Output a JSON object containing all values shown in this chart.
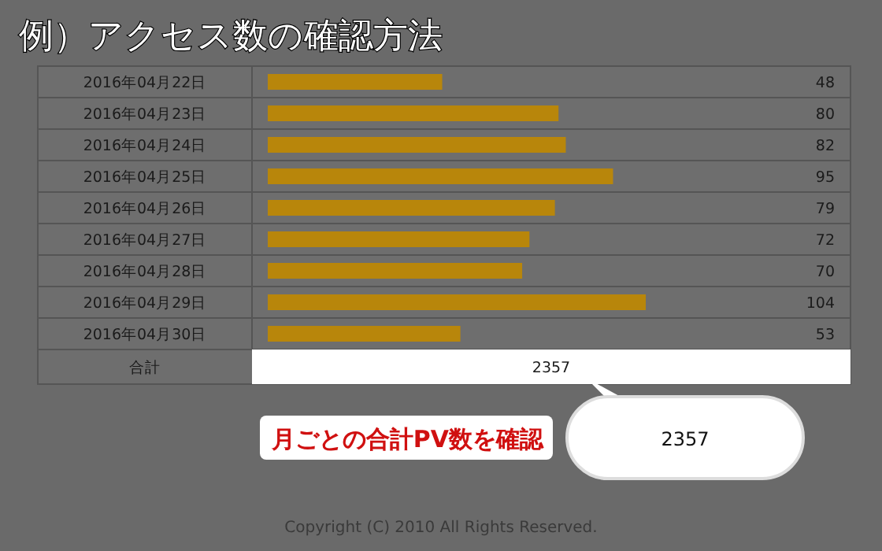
{
  "chart_data": {
    "type": "bar",
    "orientation": "horizontal",
    "title": "例）アクセス数の確認方法",
    "categories": [
      "2016年04月22日",
      "2016年04月23日",
      "2016年04月24日",
      "2016年04月25日",
      "2016年04月26日",
      "2016年04月27日",
      "2016年04月28日",
      "2016年04月29日",
      "2016年04月30日"
    ],
    "values": [
      48,
      80,
      82,
      95,
      79,
      72,
      70,
      104,
      53
    ],
    "color": "#b8860b",
    "data_labels": true,
    "annotations": [
      "合計",
      "2357",
      "月ごとの合計PV数を確認",
      "2357",
      "Copyright (C) 2010 All Rights Reserved."
    ]
  }
}
